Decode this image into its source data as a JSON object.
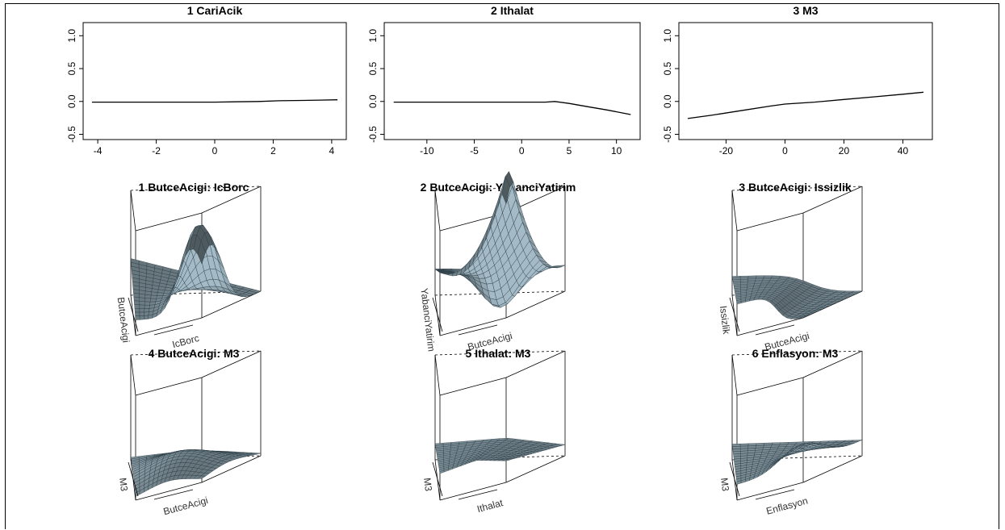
{
  "chart_data": [
    {
      "type": "line",
      "title": "1  CariAcik",
      "x": [
        -4.2,
        -3,
        -2,
        -1,
        0,
        0.7,
        1.5,
        2.2,
        3,
        3.6,
        4.2
      ],
      "y": [
        -0.01,
        -0.01,
        -0.01,
        -0.01,
        -0.01,
        -0.005,
        0,
        0.01,
        0.015,
        0.02,
        0.025
      ],
      "xlim": [
        -4.5,
        4.5
      ],
      "ylim": [
        -0.58,
        1.2
      ],
      "xticks": [
        -4,
        -2,
        0,
        2,
        4
      ],
      "yticks": [
        -0.5,
        0.0,
        0.5,
        1.0
      ],
      "xtick_labels": [
        "-4",
        "-2",
        "0",
        "2",
        "4"
      ],
      "ytick_labels": [
        "-0.5",
        "0.0",
        "0.5",
        "1.0"
      ]
    },
    {
      "type": "line",
      "title": "2  Ithalat",
      "x": [
        -13.5,
        -10,
        -5,
        0,
        2.5,
        3.5,
        5,
        7,
        9,
        11.5
      ],
      "y": [
        -0.01,
        -0.01,
        -0.01,
        -0.01,
        -0.01,
        0.0,
        -0.03,
        -0.08,
        -0.13,
        -0.2
      ],
      "xlim": [
        -14.5,
        12.5
      ],
      "ylim": [
        -0.58,
        1.2
      ],
      "xticks": [
        -10,
        -5,
        0,
        5,
        10
      ],
      "yticks": [
        -0.5,
        0.0,
        0.5,
        1.0
      ],
      "xtick_labels": [
        "-10",
        "-5",
        "0",
        "5",
        "10"
      ],
      "ytick_labels": [
        "-0.5",
        "0.0",
        "0.5",
        "1.0"
      ]
    },
    {
      "type": "line",
      "title": "3  M3",
      "x": [
        -33,
        -25,
        -15,
        -5,
        0,
        10,
        20,
        30,
        40,
        47
      ],
      "y": [
        -0.26,
        -0.21,
        -0.14,
        -0.07,
        -0.04,
        -0.01,
        0.03,
        0.07,
        0.11,
        0.14
      ],
      "xlim": [
        -36,
        50
      ],
      "ylim": [
        -0.58,
        1.2
      ],
      "xticks": [
        -20,
        0,
        20,
        40
      ],
      "yticks": [
        -0.5,
        0.0,
        0.5,
        1.0
      ],
      "xtick_labels": [
        "-20",
        "0",
        "20",
        "40"
      ],
      "ytick_labels": [
        "-0.5",
        "0.0",
        "0.5",
        "1.0"
      ]
    },
    {
      "type": "surface",
      "title": "1 ButceAcigi: IcBorc",
      "xlabel": "IcBorc",
      "ylabel": "ButceAcigi",
      "shape": "ridge-peak"
    },
    {
      "type": "surface",
      "title": "2 ButceAcigi: YabanciYatirim",
      "xlabel": "ButceAcigi",
      "ylabel": "YabanciYatirim",
      "shape": "sharp-peak"
    },
    {
      "type": "surface",
      "title": "3 ButceAcigi: Issizlik",
      "xlabel": "ButceAcigi",
      "ylabel": "Issizlik",
      "shape": "plateau"
    },
    {
      "type": "surface",
      "title": "4 ButceAcigi: M3",
      "xlabel": "ButceAcigi",
      "ylabel": "M3",
      "shape": "gentle-bump"
    },
    {
      "type": "surface",
      "title": "5 Ithalat: M3",
      "xlabel": "Ithalat",
      "ylabel": "M3",
      "shape": "crease"
    },
    {
      "type": "surface",
      "title": "6 Enflasyon: M3",
      "xlabel": "Enflasyon",
      "ylabel": "M3",
      "shape": "corner-rise"
    }
  ],
  "colors": {
    "surface": "#8fa3ad",
    "surface_dark": "#5f7580",
    "mesh": "#2a3a42",
    "line": "#000000"
  }
}
